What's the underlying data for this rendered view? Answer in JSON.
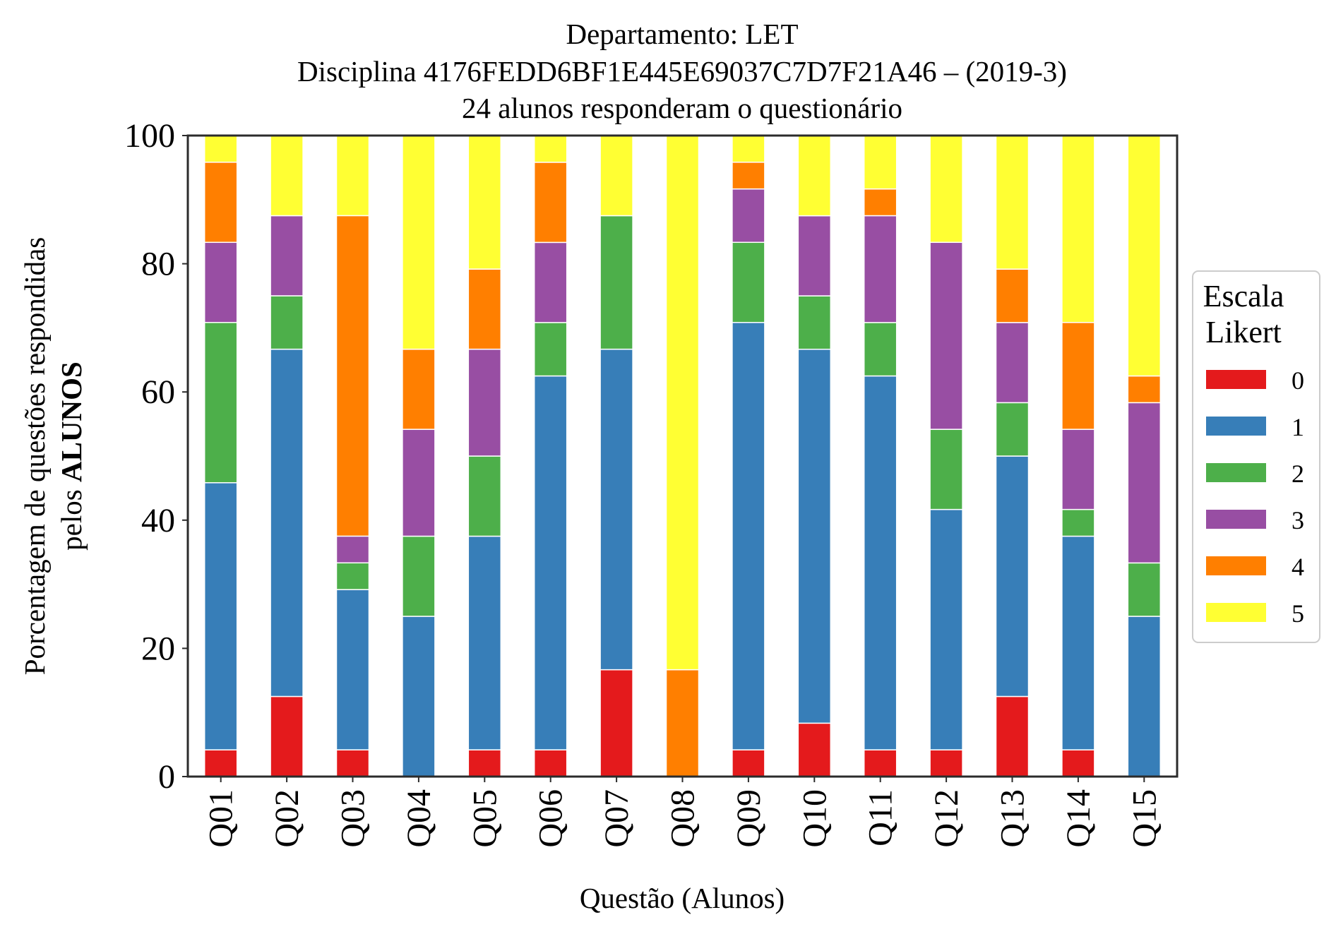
{
  "chart_data": {
    "type": "bar",
    "stacked": true,
    "title_lines": [
      "Departamento: LET",
      "Disciplina 4176FEDD6BF1E445E69037C7D7F21A46 – (2019-3)",
      "24 alunos responderam o questionário"
    ],
    "xlabel": "Questão (Alunos)",
    "ylabel_line1": "Porcentagem de questões respondidas",
    "ylabel_line2_prefix": "pelos ",
    "ylabel_line2_bold": "ALUNOS",
    "ylim": [
      0,
      100
    ],
    "yticks": [
      "0",
      "20",
      "40",
      "60",
      "80",
      "100"
    ],
    "grid": false,
    "legend_placement": "right",
    "legend_title_lines": [
      "Escala",
      "Likert"
    ],
    "categories": [
      "Q01",
      "Q02",
      "Q03",
      "Q04",
      "Q05",
      "Q06",
      "Q07",
      "Q08",
      "Q09",
      "Q10",
      "Q11",
      "Q12",
      "Q13",
      "Q14",
      "Q15"
    ],
    "series": [
      {
        "name": "0",
        "color": "#e41a1c",
        "values": [
          4.17,
          12.5,
          4.17,
          0,
          4.17,
          4.17,
          16.67,
          0,
          4.17,
          8.33,
          4.17,
          4.17,
          12.5,
          4.17,
          0
        ]
      },
      {
        "name": "1",
        "color": "#377eb8",
        "values": [
          41.67,
          54.17,
          25.0,
          25.0,
          33.33,
          58.33,
          50.0,
          0,
          66.67,
          58.33,
          58.33,
          37.5,
          37.5,
          33.33,
          25.0
        ]
      },
      {
        "name": "2",
        "color": "#4daf4a",
        "values": [
          25.0,
          8.33,
          4.17,
          12.5,
          12.5,
          8.33,
          20.83,
          0,
          12.5,
          8.33,
          8.33,
          12.5,
          8.33,
          4.17,
          8.33
        ]
      },
      {
        "name": "3",
        "color": "#984ea3",
        "values": [
          12.5,
          12.5,
          4.17,
          16.67,
          16.67,
          12.5,
          0,
          0,
          8.33,
          12.5,
          16.67,
          29.17,
          12.5,
          12.5,
          25.0
        ]
      },
      {
        "name": "4",
        "color": "#ff7f00",
        "values": [
          12.5,
          0,
          50.0,
          12.5,
          12.5,
          12.5,
          0,
          16.67,
          4.17,
          0,
          4.17,
          0,
          8.33,
          16.67,
          4.17
        ]
      },
      {
        "name": "5",
        "color": "#ffff33",
        "values": [
          4.17,
          12.5,
          12.5,
          33.33,
          20.83,
          4.17,
          12.5,
          83.33,
          4.17,
          12.5,
          8.33,
          16.67,
          20.83,
          29.17,
          37.5
        ]
      }
    ]
  }
}
